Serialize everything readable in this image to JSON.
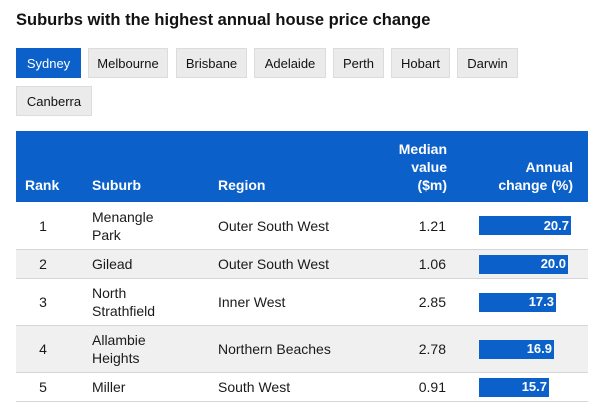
{
  "title": "Suburbs with the highest annual house price change",
  "tabs": [
    "Sydney",
    "Melbourne",
    "Brisbane",
    "Adelaide",
    "Perth",
    "Hobart",
    "Darwin",
    "Canberra"
  ],
  "active_tab": "Sydney",
  "table": {
    "headers": {
      "rank": "Rank",
      "suburb": "Suburb",
      "region": "Region",
      "median_line1": "Median",
      "median_line2": "value",
      "median_line3": "($m)",
      "change_line1": "Annual",
      "change_line2": "change (%)"
    },
    "rows": [
      {
        "rank": "1",
        "suburb_line1": "Menangle",
        "suburb_line2": "Park",
        "region": "Outer South West",
        "median": "1.21",
        "change": "20.7"
      },
      {
        "rank": "2",
        "suburb_line1": "Gilead",
        "suburb_line2": "",
        "region": "Outer South West",
        "median": "1.06",
        "change": "20.0"
      },
      {
        "rank": "3",
        "suburb_line1": "North",
        "suburb_line2": "Strathfield",
        "region": "Inner West",
        "median": "2.85",
        "change": "17.3"
      },
      {
        "rank": "4",
        "suburb_line1": "Allambie",
        "suburb_line2": "Heights",
        "region": "Northern Beaches",
        "median": "2.78",
        "change": "16.9"
      },
      {
        "rank": "5",
        "suburb_line1": "Miller",
        "suburb_line2": "",
        "region": "South West",
        "median": "0.91",
        "change": "15.7"
      }
    ]
  },
  "colors": {
    "accent": "#0b61c9",
    "tab_bg": "#ebebeb",
    "row_alt": "#f0f0f0"
  }
}
